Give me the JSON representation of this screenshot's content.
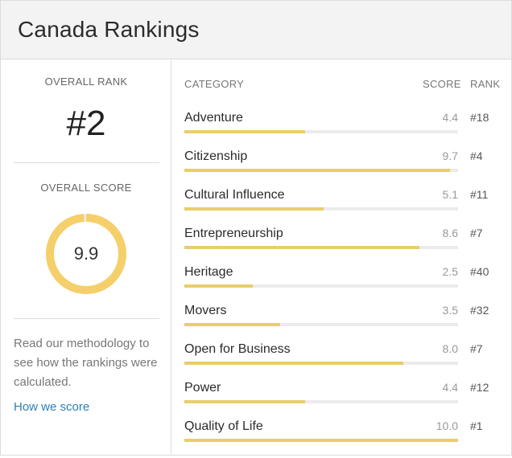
{
  "page": {
    "title": "Canada Rankings"
  },
  "overall": {
    "rank_label": "OVERALL RANK",
    "rank_value": "#2",
    "score_label": "OVERALL SCORE",
    "score_value": "9.9",
    "score_fraction": 0.99,
    "ring_color": "#f5cf6a",
    "methodology_text": "Read our methodology to see how the rankings were calculated.",
    "how_we_score_link": "How we score"
  },
  "table": {
    "headers": {
      "category": "CATEGORY",
      "score": "SCORE",
      "rank": "RANK"
    },
    "bar_color": "#e8cd6a",
    "track_color": "#ebebeb",
    "rows": [
      {
        "category": "Adventure",
        "score": "4.4",
        "score_value": 4.4,
        "rank": "#18"
      },
      {
        "category": "Citizenship",
        "score": "9.7",
        "score_value": 9.7,
        "rank": "#4"
      },
      {
        "category": "Cultural Influence",
        "score": "5.1",
        "score_value": 5.1,
        "rank": "#11"
      },
      {
        "category": "Entrepreneurship",
        "score": "8.6",
        "score_value": 8.6,
        "rank": "#7"
      },
      {
        "category": "Heritage",
        "score": "2.5",
        "score_value": 2.5,
        "rank": "#40"
      },
      {
        "category": "Movers",
        "score": "3.5",
        "score_value": 3.5,
        "rank": "#32"
      },
      {
        "category": "Open for Business",
        "score": "8.0",
        "score_value": 8.0,
        "rank": "#7"
      },
      {
        "category": "Power",
        "score": "4.4",
        "score_value": 4.4,
        "rank": "#12"
      },
      {
        "category": "Quality of Life",
        "score": "10.0",
        "score_value": 10.0,
        "rank": "#1"
      }
    ]
  }
}
